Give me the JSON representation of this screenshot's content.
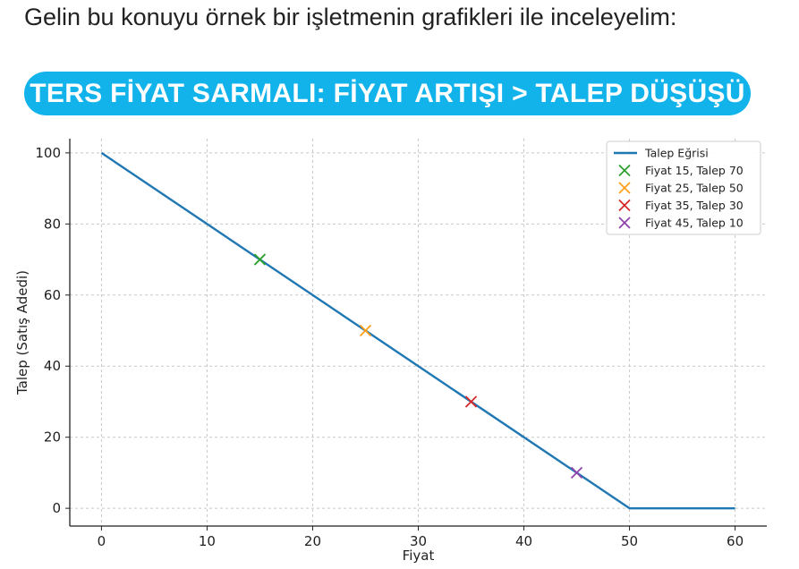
{
  "intro_text": "Gelin bu konuyu örnek bir işletmenin grafikleri ile inceleyelim:",
  "banner_text": "TERS FİYAT SARMALI: FİYAT ARTIŞI > TALEP DÜŞÜŞÜ",
  "colors": {
    "banner_bg": "#12b3eb",
    "line": "#1f77b4",
    "grid": "#c8c8c8"
  },
  "chart_data": {
    "type": "line",
    "xlabel": "Fiyat",
    "ylabel": "Talep (Satış Adedi)",
    "xlim": [
      -3,
      63
    ],
    "ylim": [
      -5,
      104
    ],
    "xticks": [
      0,
      10,
      20,
      30,
      40,
      50,
      60
    ],
    "yticks": [
      0,
      20,
      40,
      60,
      80,
      100
    ],
    "grid": true,
    "grid_style": "dashed",
    "legend_position": "top-right",
    "series": [
      {
        "name": "Talep Eğrisi",
        "kind": "line",
        "color": "#1f77b4",
        "x": [
          0,
          50,
          60
        ],
        "y": [
          100,
          0,
          0
        ]
      }
    ],
    "points": [
      {
        "name": "Fiyat 15, Talep 70",
        "x": 15,
        "y": 70,
        "color": "#2ca02c",
        "marker": "x"
      },
      {
        "name": "Fiyat 25, Talep 50",
        "x": 25,
        "y": 50,
        "color": "#ff9f1a",
        "marker": "x"
      },
      {
        "name": "Fiyat 35, Talep 30",
        "x": 35,
        "y": 30,
        "color": "#d62728",
        "marker": "x"
      },
      {
        "name": "Fiyat 45, Talep 10",
        "x": 45,
        "y": 10,
        "color": "#8e44ad",
        "marker": "x"
      }
    ]
  }
}
